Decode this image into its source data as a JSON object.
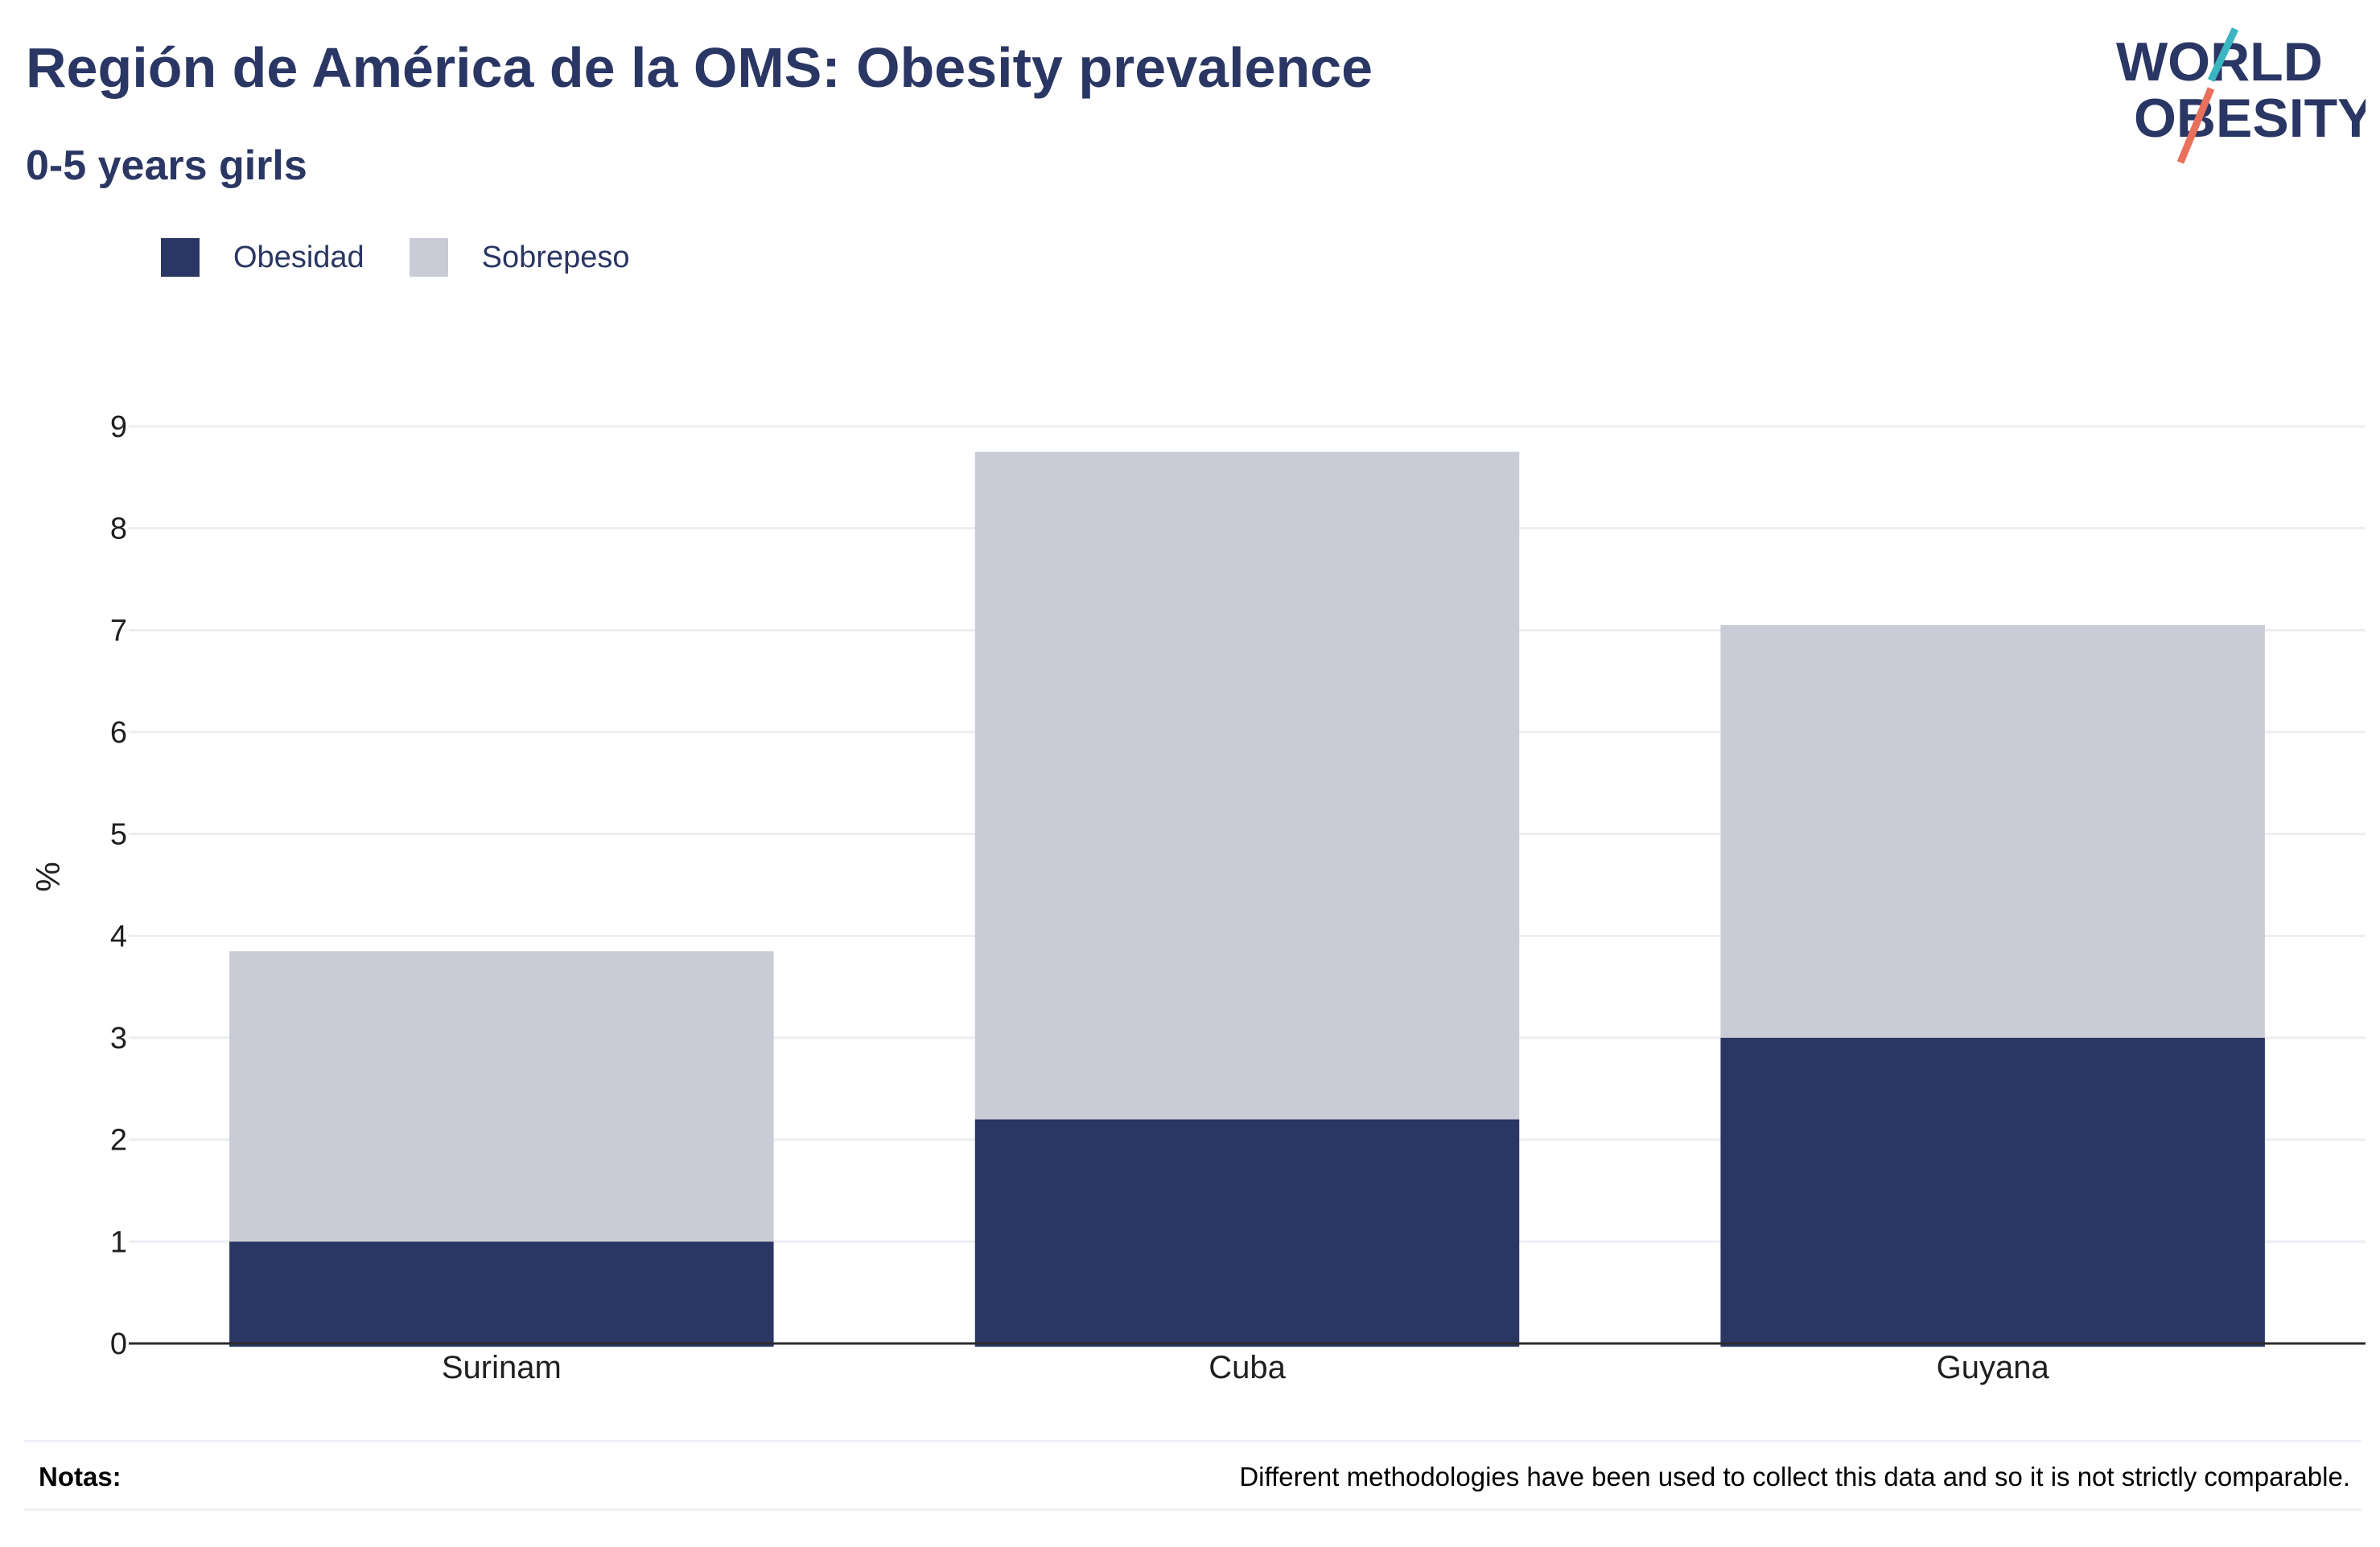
{
  "header": {
    "title": "Región de América de la OMS: Obesity prevalence",
    "subtitle": "0-5 years girls"
  },
  "logo": {
    "line1": "WORLD",
    "line2": "OBESITY"
  },
  "colors": {
    "obesidad": "#2a3663",
    "sobrepeso": "#c9cbd6",
    "grid": "#eceef2",
    "axis": "#2b2b2b",
    "logo_teal": "#3ab5c1",
    "logo_coral": "#e8705c"
  },
  "chart_data": {
    "type": "bar",
    "stacked": true,
    "categories": [
      "Surinam",
      "Cuba",
      "Guyana"
    ],
    "series": [
      {
        "name": "Obesidad",
        "values": [
          1.0,
          2.2,
          3.0
        ]
      },
      {
        "name": "Sobrepeso",
        "values": [
          2.85,
          6.55,
          4.05
        ]
      }
    ],
    "ylabel": "%",
    "xlabel": "",
    "ylim": [
      0,
      9
    ],
    "yticks": [
      0,
      1,
      2,
      3,
      4,
      5,
      6,
      7,
      8,
      9
    ],
    "grid": true,
    "legend": "top-left"
  },
  "notes": {
    "label": "Notas:",
    "text": "Different methodologies have been used to collect this data and so it is not strictly comparable."
  }
}
